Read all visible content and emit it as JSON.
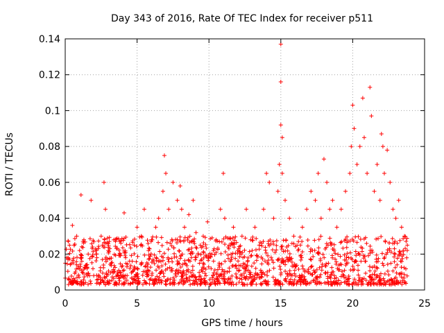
{
  "chart_data": {
    "type": "scatter",
    "title": "Day 343 of 2016, Rate Of TEC Index for receiver p511",
    "xlabel": "GPS time / hours",
    "ylabel": "ROTI / TECUs",
    "xlim": [
      0,
      25
    ],
    "ylim": [
      0,
      0.14
    ],
    "x_ticks": [
      0,
      5,
      10,
      15,
      20,
      25
    ],
    "x_tick_labels": [
      "0",
      "5",
      "10",
      "15",
      "20",
      "25"
    ],
    "y_ticks": [
      0,
      0.02,
      0.04,
      0.06,
      0.08,
      0.1,
      0.12,
      0.14
    ],
    "y_tick_labels": [
      "0",
      "0.02",
      "0.04",
      "0.06",
      "0.08",
      "0.1",
      "0.12",
      "0.14"
    ],
    "grid": true,
    "marker": "+",
    "color": "#ff0000",
    "series": [
      {
        "name": "ROTI",
        "x": [
          0.1,
          0.3,
          0.5,
          0.8,
          1.0,
          1.1,
          1.3,
          1.6,
          1.8,
          1.9,
          2.2,
          2.5,
          2.7,
          2.8,
          3.0,
          3.2,
          3.5,
          3.8,
          4.1,
          4.2,
          4.5,
          4.8,
          5.0,
          5.3,
          5.5,
          5.8,
          6.0,
          6.3,
          6.5,
          6.8,
          6.9,
          7.0,
          7.2,
          7.5,
          7.8,
          8.0,
          8.1,
          8.3,
          8.6,
          8.9,
          9.1,
          9.4,
          9.6,
          9.9,
          10.2,
          10.5,
          10.8,
          11.0,
          11.1,
          11.4,
          11.7,
          12.0,
          12.3,
          12.6,
          12.9,
          13.2,
          13.5,
          13.8,
          14.0,
          14.2,
          14.5,
          14.8,
          14.9,
          15.0,
          15.0,
          15.0,
          15.1,
          15.1,
          15.3,
          15.6,
          15.9,
          16.2,
          16.5,
          16.8,
          17.1,
          17.4,
          17.6,
          17.8,
          18.0,
          18.2,
          18.4,
          18.6,
          18.9,
          19.2,
          19.5,
          19.8,
          19.9,
          20.0,
          20.1,
          20.3,
          20.5,
          20.7,
          20.8,
          21.0,
          21.2,
          21.3,
          21.5,
          21.7,
          21.9,
          22.0,
          22.1,
          22.2,
          22.4,
          22.6,
          22.8,
          23.0,
          23.2,
          23.4,
          23.6,
          23.8
        ],
        "y": [
          0.018,
          0.025,
          0.036,
          0.03,
          0.022,
          0.053,
          0.028,
          0.02,
          0.05,
          0.024,
          0.018,
          0.03,
          0.06,
          0.045,
          0.022,
          0.015,
          0.027,
          0.02,
          0.043,
          0.018,
          0.012,
          0.025,
          0.035,
          0.03,
          0.045,
          0.022,
          0.028,
          0.035,
          0.04,
          0.055,
          0.075,
          0.065,
          0.045,
          0.06,
          0.05,
          0.058,
          0.045,
          0.035,
          0.042,
          0.05,
          0.032,
          0.025,
          0.03,
          0.038,
          0.02,
          0.028,
          0.045,
          0.065,
          0.04,
          0.025,
          0.035,
          0.022,
          0.03,
          0.045,
          0.028,
          0.035,
          0.025,
          0.045,
          0.065,
          0.06,
          0.04,
          0.055,
          0.07,
          0.137,
          0.116,
          0.092,
          0.085,
          0.065,
          0.05,
          0.04,
          0.03,
          0.022,
          0.035,
          0.045,
          0.055,
          0.05,
          0.065,
          0.04,
          0.073,
          0.06,
          0.045,
          0.05,
          0.035,
          0.045,
          0.055,
          0.065,
          0.08,
          0.103,
          0.09,
          0.07,
          0.08,
          0.107,
          0.085,
          0.065,
          0.113,
          0.097,
          0.055,
          0.07,
          0.05,
          0.087,
          0.08,
          0.065,
          0.078,
          0.06,
          0.045,
          0.04,
          0.05,
          0.035,
          0.03,
          0.025
        ]
      }
    ],
    "baseline_band": {
      "description": "dense noise cloud",
      "min": 0.003,
      "max": 0.03,
      "point_count": 1400,
      "x_range": [
        0,
        23.8
      ]
    }
  }
}
